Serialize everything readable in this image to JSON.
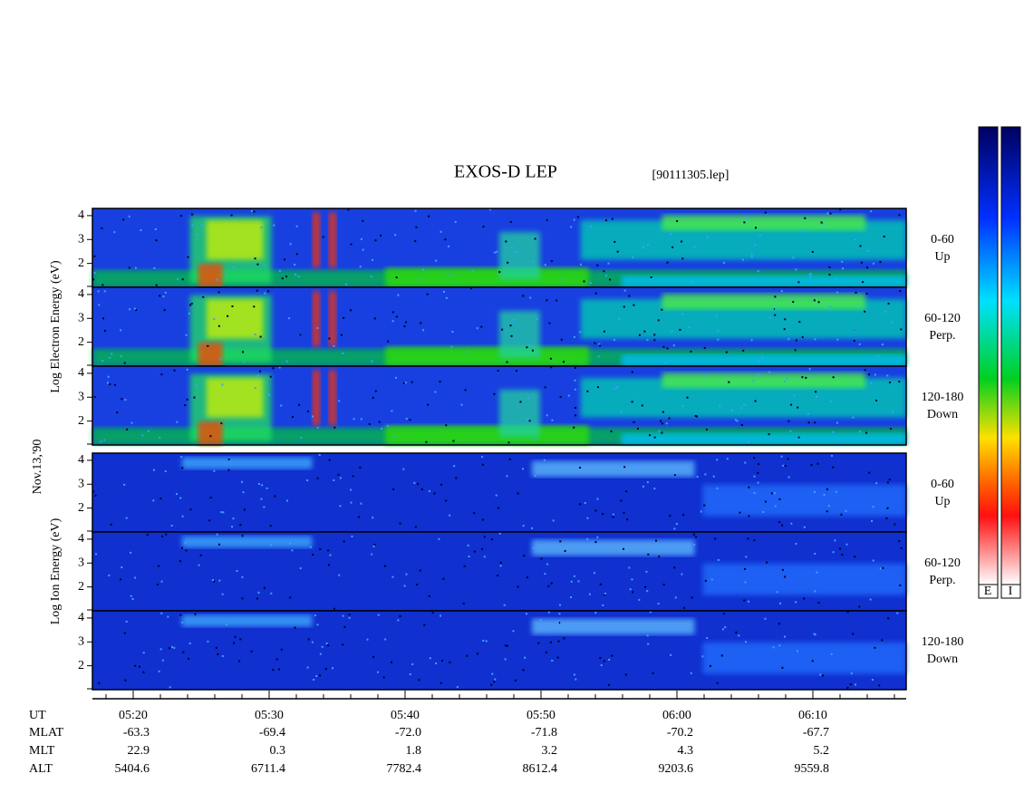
{
  "chart_data": {
    "type": "spectrogram",
    "title": "EXOS-D LEP",
    "subtitle": "[90111305.lep]",
    "date_label": "Nov.13,'90",
    "groups": [
      {
        "label": "Log  Electron  Energy (eV)",
        "species": "electron",
        "panels": [
          {
            "labels": [
              "0-60",
              "Up"
            ],
            "ylim": [
              1,
              4.3
            ],
            "yticks": [
              2,
              3,
              4
            ]
          },
          {
            "labels": [
              "60-120",
              "Perp."
            ],
            "ylim": [
              1,
              4.3
            ],
            "yticks": [
              2,
              3,
              4
            ]
          },
          {
            "labels": [
              "120-180",
              "Down"
            ],
            "ylim": [
              1,
              4.3
            ],
            "yticks": [
              2,
              3,
              4
            ]
          }
        ]
      },
      {
        "label": "Log  Ion  Energy (eV)",
        "species": "ion",
        "panels": [
          {
            "labels": [
              "0-60",
              "Up"
            ],
            "ylim": [
              1,
              4.3
            ],
            "yticks": [
              2,
              3,
              4
            ]
          },
          {
            "labels": [
              "60-120",
              "Perp."
            ],
            "ylim": [
              1,
              4.3
            ],
            "yticks": [
              2,
              3,
              4
            ]
          },
          {
            "labels": [
              "120-180",
              "Down"
            ],
            "ylim": [
              1,
              4.3
            ],
            "yticks": [
              2,
              3,
              4
            ]
          }
        ]
      }
    ],
    "colorbar": [
      "E",
      "I"
    ],
    "x_label": "UT",
    "xticks": [
      "05:20",
      "05:30",
      "05:40",
      "05:50",
      "06:00",
      "06:10"
    ],
    "rows": [
      {
        "name": "MLAT",
        "values": [
          -63.3,
          -69.4,
          {
            "value": -72,
            "label": "-72.0"
          },
          -71.8,
          -70.2,
          -67.7
        ]
      },
      {
        "name": "MLT",
        "values": [
          22.9,
          0.3,
          1.8,
          3.2,
          4.3,
          5.2
        ]
      },
      {
        "name": "ALT",
        "values": [
          5404.6,
          6711.4,
          7782.4,
          8612.4,
          9203.6,
          9559.8
        ]
      }
    ]
  }
}
